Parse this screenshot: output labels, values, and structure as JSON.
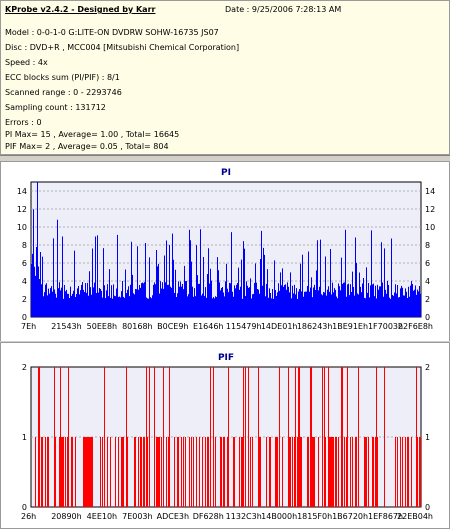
{
  "header": {
    "title": "KProbe v2.4.2 - Designed by Karr",
    "date": "Date : 9/25/2006 7:28:13 AM",
    "lines": [
      "Model : 0-0-1-0 G:LITE-ON DVDRW SOHW-16735 JS07",
      "Disc : DVD+R , MCC004 [Mitsubishi Chemical Corporation]",
      "Speed : 4x",
      "ECC blocks sum (PI/PIF) : 8/1",
      "Scanned range : 0 - 2293746",
      "Sampling count : 131712",
      "Errors : 0",
      "PI Max= 15 , Average= 1.00 , Total= 16645",
      "PIF Max= 2 , Average= 0.05 , Total= 804"
    ]
  },
  "colors": {
    "pi": "#0000ff",
    "pif": "#ff0000",
    "plot_bg": "#eeeef9",
    "grid": "#a0a0a0",
    "title": "#00008b"
  },
  "chart_data": [
    {
      "type": "bar",
      "title": "PI",
      "ylim": [
        0,
        15
      ],
      "yticks": [
        "0",
        "2",
        "4",
        "6",
        "8",
        "10",
        "12",
        "14"
      ],
      "xticks": [
        "7Eh",
        "21543h",
        "50EE8h",
        "80168h",
        "B0CE9h",
        "E1646h",
        "115479h",
        "14DE01h",
        "186243h",
        "1BE91Eh",
        "1F7003h",
        "22F6E8h"
      ],
      "grid": true,
      "max": 15,
      "average": 1.0,
      "baseline_band": [
        2,
        4
      ],
      "spike_range": [
        4,
        12
      ]
    },
    {
      "type": "bar",
      "title": "PIF",
      "ylim": [
        0,
        2
      ],
      "yticks": [
        "0",
        "1",
        "2"
      ],
      "xticks": [
        "26h",
        "20890h",
        "4EE10h",
        "7E003h",
        "ADCE3h",
        "DF628h",
        "1132C3h",
        "14B000h",
        "1815F0h",
        "1B6720h",
        "1EF867h",
        "22EB04h"
      ],
      "grid": true,
      "max": 2,
      "average": 0.05
    }
  ]
}
